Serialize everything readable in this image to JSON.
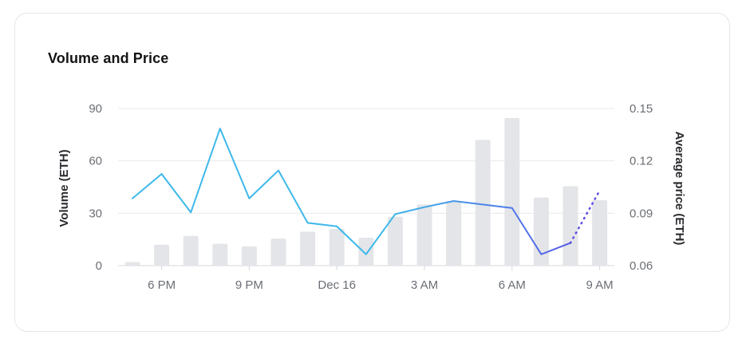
{
  "card": {
    "title": "Volume and Price"
  },
  "chart_data": {
    "type": "bar+line",
    "title": "Volume and Price",
    "y_left": {
      "label": "Volume (ETH)",
      "ylim": [
        0,
        90
      ],
      "ticks": [
        0,
        30,
        60,
        90
      ]
    },
    "y_right": {
      "label": "Average price (ETH)",
      "ylim": [
        0.06,
        0.15
      ],
      "ticks": [
        "0.06",
        "0.09",
        "0.12",
        "0.15"
      ]
    },
    "x_ticks": [
      {
        "label": "6 PM",
        "index": 1
      },
      {
        "label": "9 PM",
        "index": 4
      },
      {
        "label": "Dec 16",
        "index": 7
      },
      {
        "label": "3 AM",
        "index": 10
      },
      {
        "label": "6 AM",
        "index": 13
      },
      {
        "label": "9 AM",
        "index": 16
      }
    ],
    "volume": [
      2,
      12,
      17,
      12.5,
      11,
      15.5,
      19.5,
      21,
      16,
      28,
      35,
      37,
      72,
      84.5,
      39,
      45.5,
      37.5
    ],
    "price": [
      0.0985,
      0.1125,
      0.0905,
      0.1385,
      0.0985,
      0.1145,
      0.0845,
      0.0825,
      0.0665,
      0.0895,
      0.0935,
      0.097,
      0.095,
      0.093,
      0.0665,
      0.073,
      0.103
    ],
    "price_colors": {
      "start": "#3db8ea",
      "end": "#5c4be6"
    },
    "bar_color": "#e3e5e8",
    "grid": true,
    "dotted_last_segment": true
  }
}
